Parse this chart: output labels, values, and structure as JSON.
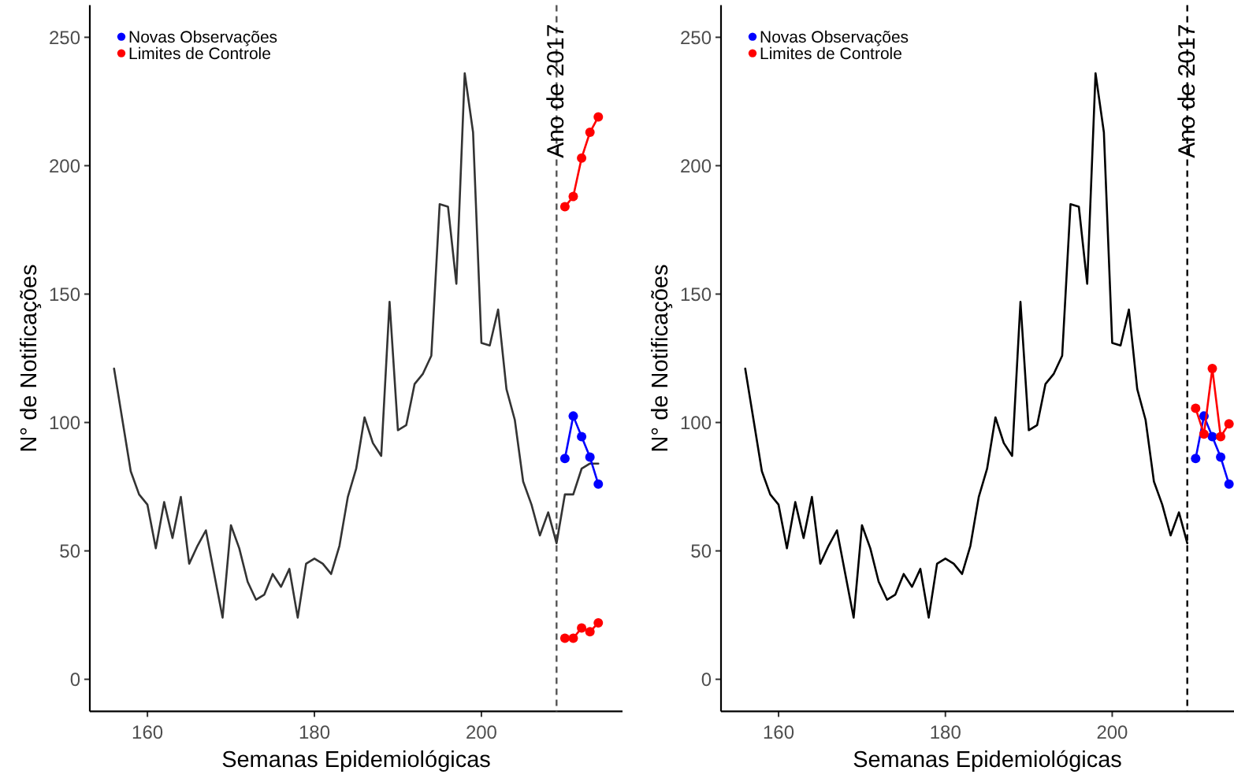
{
  "chart_data": [
    {
      "type": "line",
      "xlabel": "Semanas Epidemiológicas",
      "ylabel": "N° de Notificações",
      "xlim": [
        153.1,
        216.9
      ],
      "ylim": [
        -12.5,
        262.5
      ],
      "xticks": [
        160,
        180,
        200
      ],
      "yticks": [
        0,
        50,
        100,
        150,
        200,
        250
      ],
      "legend": "top left",
      "ref_lines": [
        {
          "axis": "x",
          "value": 209,
          "label": "Ano de 2017",
          "color": "#555555",
          "line_style": "dashed"
        }
      ],
      "series": [
        {
          "color": "#333333",
          "marker": "none",
          "x": [
            156,
            157,
            158,
            159,
            160,
            161,
            162,
            163,
            164,
            165,
            166,
            167,
            168,
            169,
            170,
            171,
            172,
            173,
            174,
            175,
            176,
            177,
            178,
            179,
            180,
            181,
            182,
            183,
            184,
            185,
            186,
            187,
            188,
            189,
            190,
            191,
            192,
            193,
            194,
            195,
            196,
            197,
            198,
            199,
            200,
            201,
            202,
            203,
            204,
            205,
            206,
            207,
            208,
            209,
            210,
            211,
            212,
            213,
            214
          ],
          "values": [
            121,
            101,
            81,
            72,
            68,
            51,
            69,
            55,
            71,
            45,
            52,
            58,
            41,
            24,
            60,
            51,
            38,
            31,
            33,
            41,
            36,
            43,
            24,
            45,
            47,
            45,
            41,
            52,
            71,
            82,
            102,
            92,
            87,
            147,
            97,
            99,
            115,
            119,
            126,
            185,
            184,
            154,
            236,
            213,
            131,
            130,
            144,
            113,
            101,
            77,
            68,
            56,
            65,
            53,
            72,
            72,
            82,
            84,
            84
          ]
        },
        {
          "name": "Novas Observações",
          "color": "#0000ff",
          "marker": "circle",
          "x": [
            210,
            211,
            212,
            213,
            214
          ],
          "values": [
            86,
            102.5,
            94.5,
            86.5,
            76
          ]
        },
        {
          "name": "Limites de Controle",
          "color": "#ff0000",
          "marker": "circle",
          "x": [
            210,
            211,
            212,
            213,
            214
          ],
          "values": [
            184,
            188,
            203,
            213,
            219
          ]
        },
        {
          "color": "#ff0000",
          "marker": "circle",
          "x": [
            210,
            211,
            212,
            213,
            214
          ],
          "values": [
            16,
            16,
            20,
            18.5,
            22
          ]
        }
      ]
    },
    {
      "type": "line",
      "xlabel": "Semanas Epidemiológicas",
      "ylabel": "N° de Notificações",
      "xlim": [
        153.1,
        214.6
      ],
      "ylim": [
        -12.5,
        262.5
      ],
      "xticks": [
        160,
        180,
        200
      ],
      "yticks": [
        0,
        50,
        100,
        150,
        200,
        250
      ],
      "legend": "top left",
      "ref_lines": [
        {
          "axis": "x",
          "value": 209,
          "label": "Ano de 2017",
          "color": "#000000",
          "line_style": "dashed"
        }
      ],
      "series": [
        {
          "color": "#000000",
          "marker": "none",
          "x": [
            156,
            157,
            158,
            159,
            160,
            161,
            162,
            163,
            164,
            165,
            166,
            167,
            168,
            169,
            170,
            171,
            172,
            173,
            174,
            175,
            176,
            177,
            178,
            179,
            180,
            181,
            182,
            183,
            184,
            185,
            186,
            187,
            188,
            189,
            190,
            191,
            192,
            193,
            194,
            195,
            196,
            197,
            198,
            199,
            200,
            201,
            202,
            203,
            204,
            205,
            206,
            207,
            208,
            209
          ],
          "values": [
            121,
            101,
            81,
            72,
            68,
            51,
            69,
            55,
            71,
            45,
            52,
            58,
            41,
            24,
            60,
            51,
            38,
            31,
            33,
            41,
            36,
            43,
            24,
            45,
            47,
            45,
            41,
            52,
            71,
            82,
            102,
            92,
            87,
            147,
            97,
            99,
            115,
            119,
            126,
            185,
            184,
            154,
            236,
            213,
            131,
            130,
            144,
            113,
            101,
            77,
            68,
            56,
            65,
            53
          ]
        },
        {
          "name": "Novas Observações",
          "color": "#0000ff",
          "marker": "circle",
          "x": [
            210,
            211,
            212,
            213,
            214
          ],
          "values": [
            86,
            102.5,
            94.5,
            86.5,
            76
          ]
        },
        {
          "name": "Limites de Controle",
          "color": "#ff0000",
          "marker": "circle",
          "x": [
            210,
            211,
            212,
            213,
            214
          ],
          "values": [
            105.5,
            95.5,
            121,
            94.5,
            99.5
          ]
        }
      ]
    }
  ]
}
